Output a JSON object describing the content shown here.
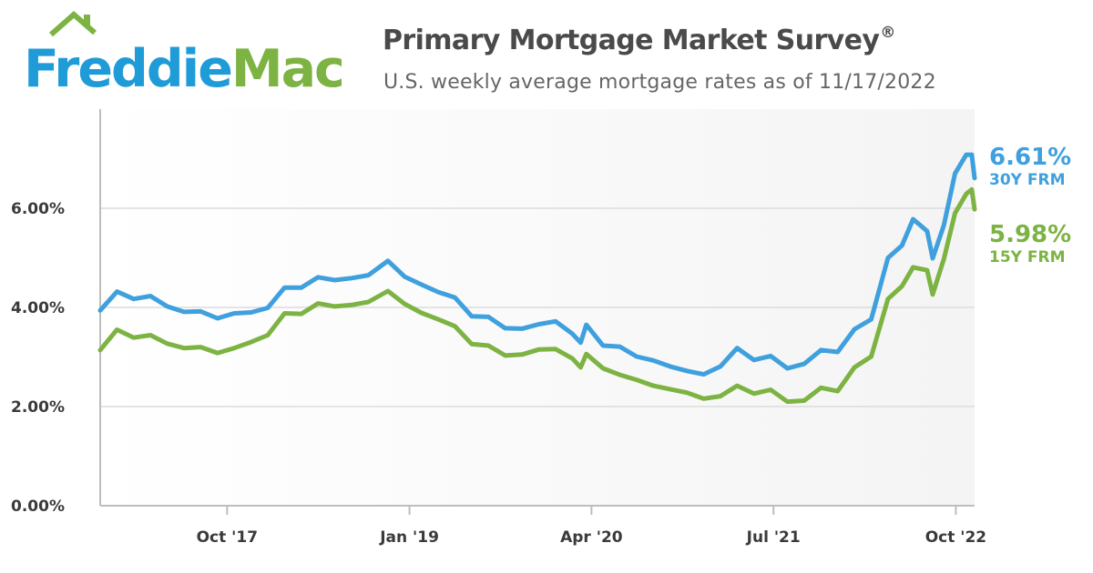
{
  "brand": {
    "name_part1": "Freddie",
    "name_part2": "Mac",
    "color_blue": "#1f9bd7",
    "color_green": "#7cb342"
  },
  "header": {
    "title": "Primary Mortgage Market Survey",
    "title_mark": "®",
    "subtitle": "U.S. weekly average mortgage rates as of 11/17/2022"
  },
  "chart_data": {
    "type": "line",
    "title": "Primary Mortgage Market Survey®",
    "subtitle": "U.S. weekly average mortgage rates as of 11/17/2022",
    "xlim": [
      "2016-11-17",
      "2022-11-17"
    ],
    "ylim": [
      0,
      8
    ],
    "y_ticks": [
      {
        "value": 0,
        "label": "0.00%"
      },
      {
        "value": 2,
        "label": "2.00%"
      },
      {
        "value": 4,
        "label": "4.00%"
      },
      {
        "value": 6,
        "label": "6.00%"
      }
    ],
    "x_ticks": [
      {
        "date": "2017-10-01",
        "label": "Oct '17"
      },
      {
        "date": "2019-01-01",
        "label": "Jan '19"
      },
      {
        "date": "2020-04-01",
        "label": "Apr '20"
      },
      {
        "date": "2021-07-01",
        "label": "Jul '21"
      },
      {
        "date": "2022-10-01",
        "label": "Oct '22"
      }
    ],
    "grid": true,
    "series": [
      {
        "name": "30Y FRM",
        "label": "30Y FRM",
        "end_value_label": "6.61%",
        "color": "#3fa0de",
        "points": [
          [
            "2016-11-17",
            3.94
          ],
          [
            "2016-12-29",
            4.32
          ],
          [
            "2017-02-09",
            4.17
          ],
          [
            "2017-03-23",
            4.23
          ],
          [
            "2017-05-04",
            4.02
          ],
          [
            "2017-06-15",
            3.91
          ],
          [
            "2017-07-27",
            3.92
          ],
          [
            "2017-09-07",
            3.78
          ],
          [
            "2017-10-19",
            3.88
          ],
          [
            "2017-11-30",
            3.9
          ],
          [
            "2018-01-11",
            3.99
          ],
          [
            "2018-02-22",
            4.4
          ],
          [
            "2018-04-05",
            4.4
          ],
          [
            "2018-05-17",
            4.61
          ],
          [
            "2018-06-28",
            4.55
          ],
          [
            "2018-08-09",
            4.59
          ],
          [
            "2018-09-20",
            4.65
          ],
          [
            "2018-11-08",
            4.94
          ],
          [
            "2018-12-20",
            4.62
          ],
          [
            "2019-01-31",
            4.46
          ],
          [
            "2019-03-14",
            4.31
          ],
          [
            "2019-04-25",
            4.2
          ],
          [
            "2019-06-06",
            3.82
          ],
          [
            "2019-07-18",
            3.81
          ],
          [
            "2019-08-29",
            3.58
          ],
          [
            "2019-10-10",
            3.57
          ],
          [
            "2019-11-21",
            3.66
          ],
          [
            "2020-01-02",
            3.72
          ],
          [
            "2020-02-13",
            3.47
          ],
          [
            "2020-03-05",
            3.29
          ],
          [
            "2020-03-19",
            3.65
          ],
          [
            "2020-04-30",
            3.23
          ],
          [
            "2020-06-11",
            3.21
          ],
          [
            "2020-07-23",
            3.01
          ],
          [
            "2020-09-03",
            2.93
          ],
          [
            "2020-10-15",
            2.81
          ],
          [
            "2020-11-26",
            2.72
          ],
          [
            "2021-01-07",
            2.65
          ],
          [
            "2021-02-18",
            2.81
          ],
          [
            "2021-04-01",
            3.18
          ],
          [
            "2021-05-13",
            2.94
          ],
          [
            "2021-06-24",
            3.02
          ],
          [
            "2021-08-05",
            2.77
          ],
          [
            "2021-09-16",
            2.86
          ],
          [
            "2021-10-28",
            3.14
          ],
          [
            "2021-12-09",
            3.1
          ],
          [
            "2022-01-20",
            3.56
          ],
          [
            "2022-03-03",
            3.76
          ],
          [
            "2022-04-14",
            5.0
          ],
          [
            "2022-05-19",
            5.25
          ],
          [
            "2022-06-16",
            5.78
          ],
          [
            "2022-07-21",
            5.54
          ],
          [
            "2022-08-04",
            4.99
          ],
          [
            "2022-09-01",
            5.66
          ],
          [
            "2022-09-29",
            6.7
          ],
          [
            "2022-10-27",
            7.08
          ],
          [
            "2022-11-10",
            7.08
          ],
          [
            "2022-11-17",
            6.61
          ]
        ]
      },
      {
        "name": "15Y FRM",
        "label": "15Y FRM",
        "end_value_label": "5.98%",
        "color": "#7cb342",
        "points": [
          [
            "2016-11-17",
            3.14
          ],
          [
            "2016-12-29",
            3.55
          ],
          [
            "2017-02-09",
            3.39
          ],
          [
            "2017-03-23",
            3.44
          ],
          [
            "2017-05-04",
            3.27
          ],
          [
            "2017-06-15",
            3.18
          ],
          [
            "2017-07-27",
            3.2
          ],
          [
            "2017-09-07",
            3.08
          ],
          [
            "2017-10-19",
            3.18
          ],
          [
            "2017-11-30",
            3.3
          ],
          [
            "2018-01-11",
            3.44
          ],
          [
            "2018-02-22",
            3.88
          ],
          [
            "2018-04-05",
            3.87
          ],
          [
            "2018-05-17",
            4.08
          ],
          [
            "2018-06-28",
            4.02
          ],
          [
            "2018-08-09",
            4.05
          ],
          [
            "2018-09-20",
            4.11
          ],
          [
            "2018-11-08",
            4.33
          ],
          [
            "2018-12-20",
            4.07
          ],
          [
            "2019-01-31",
            3.89
          ],
          [
            "2019-03-14",
            3.76
          ],
          [
            "2019-04-25",
            3.62
          ],
          [
            "2019-06-06",
            3.26
          ],
          [
            "2019-07-18",
            3.23
          ],
          [
            "2019-08-29",
            3.03
          ],
          [
            "2019-10-10",
            3.05
          ],
          [
            "2019-11-21",
            3.15
          ],
          [
            "2020-01-02",
            3.16
          ],
          [
            "2020-02-13",
            2.97
          ],
          [
            "2020-03-05",
            2.79
          ],
          [
            "2020-03-19",
            3.06
          ],
          [
            "2020-04-30",
            2.77
          ],
          [
            "2020-06-11",
            2.64
          ],
          [
            "2020-07-23",
            2.54
          ],
          [
            "2020-09-03",
            2.42
          ],
          [
            "2020-10-15",
            2.35
          ],
          [
            "2020-11-26",
            2.28
          ],
          [
            "2021-01-07",
            2.16
          ],
          [
            "2021-02-18",
            2.21
          ],
          [
            "2021-04-01",
            2.42
          ],
          [
            "2021-05-13",
            2.26
          ],
          [
            "2021-06-24",
            2.34
          ],
          [
            "2021-08-05",
            2.1
          ],
          [
            "2021-09-16",
            2.12
          ],
          [
            "2021-10-28",
            2.38
          ],
          [
            "2021-12-09",
            2.31
          ],
          [
            "2022-01-20",
            2.79
          ],
          [
            "2022-03-03",
            3.01
          ],
          [
            "2022-04-14",
            4.17
          ],
          [
            "2022-05-19",
            4.43
          ],
          [
            "2022-06-16",
            4.81
          ],
          [
            "2022-07-21",
            4.75
          ],
          [
            "2022-08-04",
            4.26
          ],
          [
            "2022-09-01",
            4.98
          ],
          [
            "2022-09-29",
            5.9
          ],
          [
            "2022-10-27",
            6.29
          ],
          [
            "2022-11-10",
            6.38
          ],
          [
            "2022-11-17",
            5.98
          ]
        ]
      }
    ]
  }
}
